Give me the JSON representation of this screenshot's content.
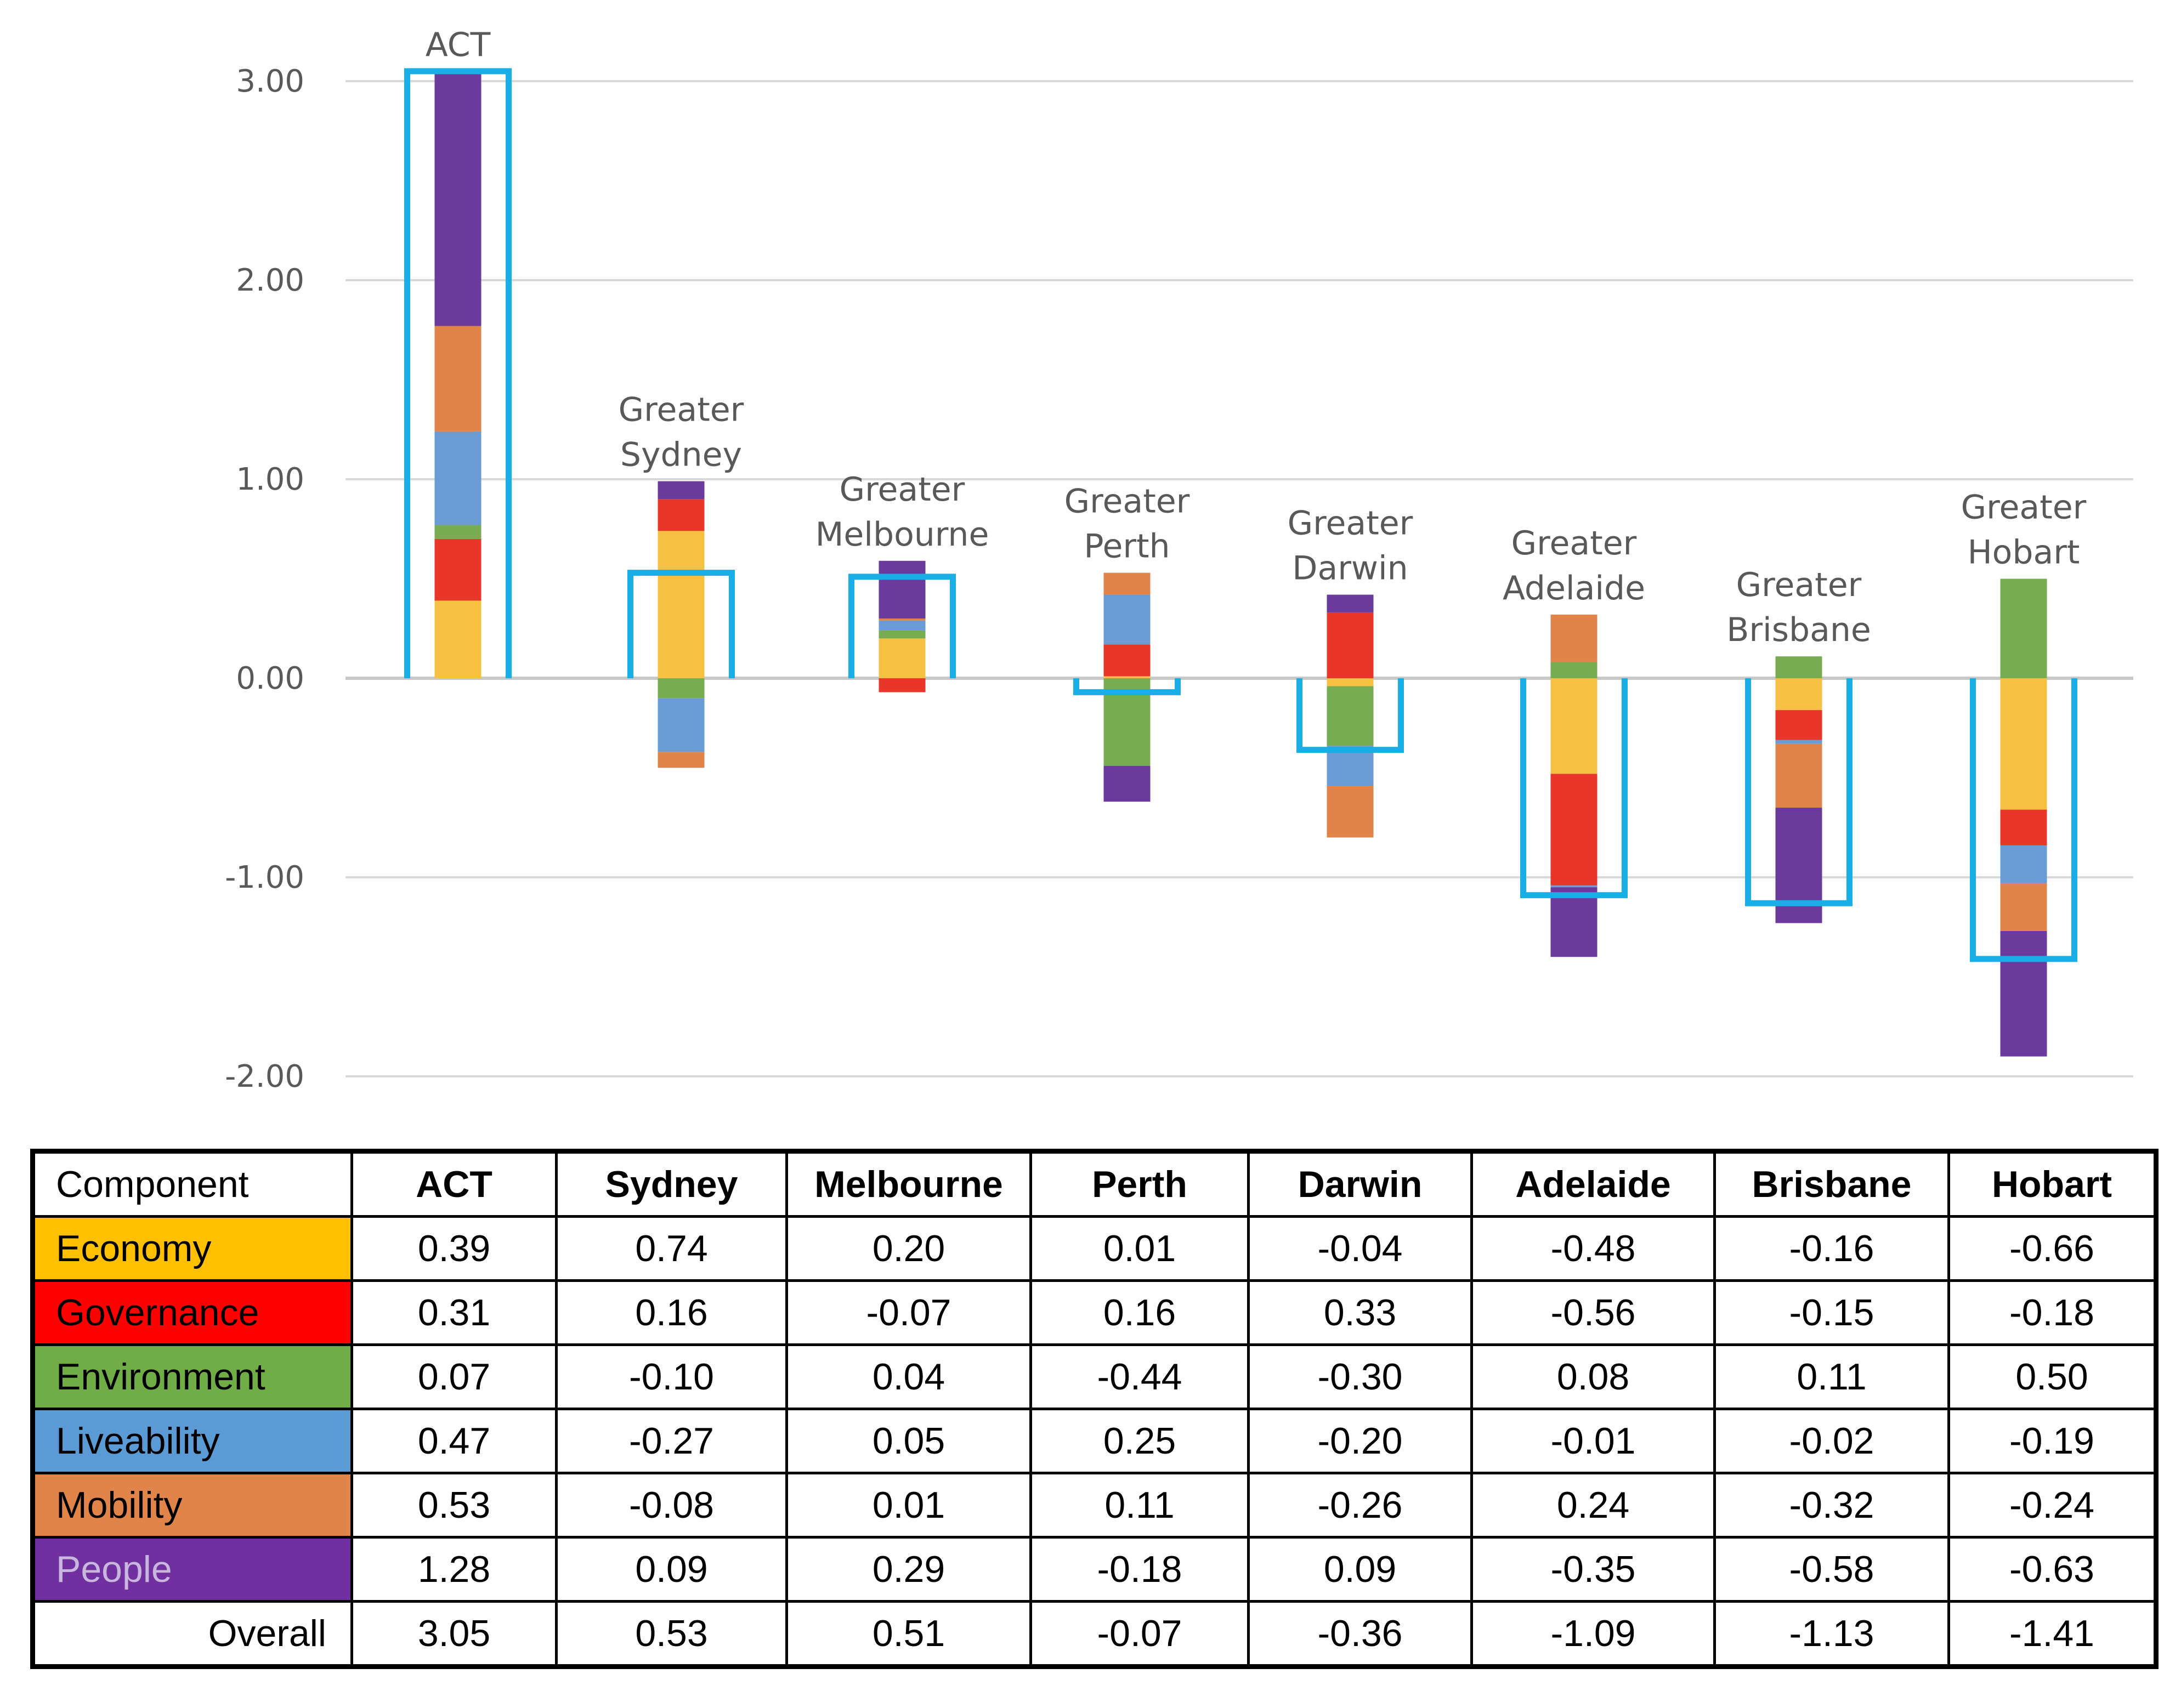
{
  "chart_data": {
    "type": "bar",
    "stacked": true,
    "diverging": true,
    "ylim": [
      -2,
      3
    ],
    "y_ticks": [
      "3.00",
      "2.00",
      "1.00",
      "0.00",
      "-1.00",
      "-2.00"
    ],
    "y_tick_values": [
      3,
      2,
      1,
      0,
      -1,
      -2
    ],
    "gridlines": true,
    "categories": [
      "ACT",
      "Greater Sydney",
      "Greater Melbourne",
      "Greater Perth",
      "Greater Darwin",
      "Greater Adelaide",
      "Greater Brisbane",
      "Greater Hobart"
    ],
    "category_label_lines": [
      [
        "ACT"
      ],
      [
        "Greater",
        "Sydney"
      ],
      [
        "Greater",
        "Melbourne"
      ],
      [
        "Greater",
        "Perth"
      ],
      [
        "Greater",
        "Darwin"
      ],
      [
        "Greater",
        "Adelaide"
      ],
      [
        "Greater",
        "Brisbane"
      ],
      [
        "Greater",
        "Hobart"
      ]
    ],
    "series": [
      {
        "name": "Economy",
        "color": "#F6C142",
        "values": [
          0.39,
          0.74,
          0.2,
          0.01,
          -0.04,
          -0.48,
          -0.16,
          -0.66
        ]
      },
      {
        "name": "Governance",
        "color": "#E9362A",
        "values": [
          0.31,
          0.16,
          -0.07,
          0.16,
          0.33,
          -0.56,
          -0.15,
          -0.18
        ]
      },
      {
        "name": "Environment",
        "color": "#77AC52",
        "values": [
          0.07,
          -0.1,
          0.04,
          -0.44,
          -0.3,
          0.08,
          0.11,
          0.5
        ]
      },
      {
        "name": "Liveability",
        "color": "#6B9BD5",
        "values": [
          0.47,
          -0.27,
          0.05,
          0.25,
          -0.2,
          -0.01,
          -0.02,
          -0.19
        ]
      },
      {
        "name": "Mobility",
        "color": "#E0844A",
        "values": [
          0.53,
          -0.08,
          0.01,
          0.11,
          -0.26,
          0.24,
          -0.32,
          -0.24
        ]
      },
      {
        "name": "People",
        "color": "#6A3A9C",
        "values": [
          1.28,
          0.09,
          0.29,
          -0.18,
          0.09,
          -0.35,
          -0.58,
          -0.63
        ]
      }
    ],
    "overall": {
      "name": "Overall",
      "color": "#19AEE6",
      "values": [
        3.05,
        0.53,
        0.51,
        -0.07,
        -0.36,
        -1.09,
        -1.13,
        -1.41
      ]
    }
  },
  "table": {
    "header": [
      "Component",
      "ACT",
      "Sydney",
      "Melbourne",
      "Perth",
      "Darwin",
      "Adelaide",
      "Brisbane",
      "Hobart"
    ],
    "rows": [
      {
        "label": "Economy",
        "bg": "#FFC000",
        "fg": "#000000",
        "values": [
          "0.39",
          "0.74",
          "0.20",
          "0.01",
          "-0.04",
          "-0.48",
          "-0.16",
          "-0.66"
        ]
      },
      {
        "label": "Governance",
        "bg": "#FF0000",
        "fg": "#000000",
        "values": [
          "0.31",
          "0.16",
          "-0.07",
          "0.16",
          "0.33",
          "-0.56",
          "-0.15",
          "-0.18"
        ]
      },
      {
        "label": "Environment",
        "bg": "#70AD47",
        "fg": "#000000",
        "values": [
          "0.07",
          "-0.10",
          "0.04",
          "-0.44",
          "-0.30",
          "0.08",
          "0.11",
          "0.50"
        ]
      },
      {
        "label": "Liveability",
        "bg": "#5B9BD5",
        "fg": "#000000",
        "values": [
          "0.47",
          "-0.27",
          "0.05",
          "0.25",
          "-0.20",
          "-0.01",
          "-0.02",
          "-0.19"
        ]
      },
      {
        "label": "Mobility",
        "bg": "#E0844A",
        "fg": "#000000",
        "values": [
          "0.53",
          "-0.08",
          "0.01",
          "0.11",
          "-0.26",
          "0.24",
          "-0.32",
          "-0.24"
        ]
      },
      {
        "label": "People",
        "bg": "#7030A0",
        "fg": "#C9B6DE",
        "values": [
          "1.28",
          "0.09",
          "0.29",
          "-0.18",
          "0.09",
          "-0.35",
          "-0.58",
          "-0.63"
        ]
      },
      {
        "label": "Overall",
        "bg": "#FFFFFF",
        "fg": "#000000",
        "values": [
          "3.05",
          "0.53",
          "0.51",
          "-0.07",
          "-0.36",
          "-1.09",
          "-1.13",
          "-1.41"
        ]
      }
    ]
  }
}
